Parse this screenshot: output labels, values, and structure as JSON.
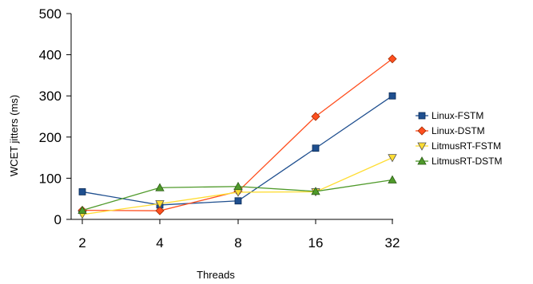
{
  "chart_data": {
    "type": "line",
    "categories": [
      "2",
      "4",
      "8",
      "16",
      "32"
    ],
    "xlabel": "Threads",
    "ylabel": "WCET jitters (ms)",
    "ylim": [
      0,
      500
    ],
    "yticks": [
      "0",
      "100",
      "200",
      "300",
      "400",
      "500"
    ],
    "grid": false,
    "legend_position": "right",
    "series": [
      {
        "name": "Linux-FSTM",
        "values": [
          67,
          35,
          45,
          173,
          300
        ],
        "color": "#1f4f8f",
        "marker": "square"
      },
      {
        "name": "Linux-DSTM",
        "values": [
          22,
          21,
          68,
          250,
          390
        ],
        "color": "#ff4f1f",
        "marker": "diamond"
      },
      {
        "name": "LitmusRT-FSTM",
        "values": [
          12,
          38,
          66,
          67,
          150
        ],
        "color": "#ffdd33",
        "marker": "triangle-down"
      },
      {
        "name": "LitmusRT-DSTM",
        "values": [
          22,
          77,
          80,
          68,
          96
        ],
        "color": "#4f9a2a",
        "marker": "triangle-up"
      }
    ]
  }
}
